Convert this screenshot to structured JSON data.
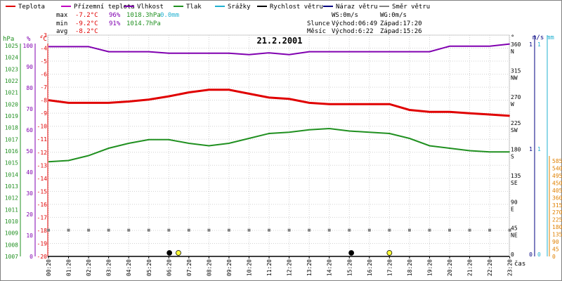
{
  "chart_data": {
    "type": "line",
    "title": "21.2.2001",
    "legend": [
      {
        "label": "Teplota",
        "color": "#e00000"
      },
      {
        "label": "Přízemní teplota",
        "color": "#c000c0"
      },
      {
        "label": "Vlhkost",
        "color": "#8000b0"
      },
      {
        "label": "Tlak",
        "color": "#209020"
      },
      {
        "label": "Srážky",
        "color": "#20b0d0"
      },
      {
        "label": "Rychlost větru",
        "color": "#000000"
      },
      {
        "label": "Náraz větru",
        "color": "#000080"
      },
      {
        "label": "Směr větru",
        "color": "#808080"
      }
    ],
    "stats": {
      "max": {
        "label": "max",
        "temp": "-7.2°C",
        "hum": "96%",
        "press": "1018.3hPa",
        "rain": "0.0mm"
      },
      "min": {
        "label": "min",
        "temp": "-9.2°C",
        "hum": "91%",
        "press": "1014.7hPa"
      },
      "avg": {
        "label": "avg",
        "temp": "-8.2°C"
      }
    },
    "info": {
      "ws": "WS:0m/s",
      "wg": "WG:0m/s",
      "sun_label": "Slunce",
      "sun_rise": "Východ:06:49",
      "sun_set": "Západ:17:20",
      "moon_label": "Měsíc",
      "moon_rise": "Východ:6:22",
      "moon_set": "Západ:15:26"
    },
    "axis_titles": {
      "hpa": "hPa",
      "pct": "%",
      "celsius": "°C",
      "deg": "°",
      "ms": "m/s",
      "mm": "mm",
      "x": "čas"
    },
    "x_ticks": [
      "00:20",
      "01:20",
      "02:20",
      "03:20",
      "04:20",
      "05:20",
      "06:20",
      "07:20",
      "08:20",
      "09:20",
      "10:20",
      "11:20",
      "12:20",
      "13:20",
      "14:20",
      "15:20",
      "16:20",
      "17:20",
      "18:20",
      "19:20",
      "20:20",
      "21:20",
      "22:20",
      "23:20"
    ],
    "hpa_ticks": [
      "1025",
      "1024",
      "1023",
      "1022",
      "1021",
      "1020",
      "1019",
      "1018",
      "1017",
      "1016",
      "1015",
      "1014",
      "1013",
      "1012",
      "1011",
      "1010",
      "1009",
      "1008",
      "1007"
    ],
    "pct_ticks": [
      "100",
      "90",
      "80",
      "70",
      "60",
      "50",
      "40",
      "30",
      "20",
      "10",
      "0"
    ],
    "celsius_ticks": [
      "-3",
      "-4",
      "-5",
      "-6",
      "-7",
      "-8",
      "-9",
      "-10",
      "-11",
      "-12",
      "-13",
      "-14",
      "-15",
      "-16",
      "-17",
      "-18",
      "-19",
      "-20"
    ],
    "dir_ticks": [
      {
        "deg": "360",
        "dir": "N"
      },
      {
        "deg": "315",
        "dir": "NW"
      },
      {
        "deg": "270",
        "dir": "W"
      },
      {
        "deg": "225",
        "dir": "SW"
      },
      {
        "deg": "180",
        "dir": "S"
      },
      {
        "deg": "135",
        "dir": "SE"
      },
      {
        "deg": "90",
        "dir": "E"
      },
      {
        "deg": "45",
        "dir": "NE"
      },
      {
        "deg": "0",
        "dir": ""
      }
    ],
    "ms_ticks": [
      "1",
      "1",
      "0"
    ],
    "mm_ticks": [
      "1",
      "1",
      "0"
    ],
    "orange_ticks": [
      "585",
      "540",
      "495",
      "450",
      "405",
      "360",
      "315",
      "270",
      "225",
      "180",
      "135",
      "90",
      "45",
      "0"
    ],
    "ylim_celsius": [
      -20,
      -3
    ],
    "ylim_hpa": [
      1007,
      1025
    ],
    "ylim_pct": [
      0,
      100
    ],
    "series": [
      {
        "name": "Teplota",
        "color": "#e00000",
        "axis": "celsius",
        "x": [
          0,
          1,
          2,
          3,
          4,
          5,
          6,
          7,
          8,
          9,
          10,
          11,
          12,
          13,
          14,
          15,
          16,
          17,
          18,
          19,
          20,
          21,
          22,
          23
        ],
        "y": [
          -8.0,
          -8.2,
          -8.2,
          -8.2,
          -8.1,
          -7.95,
          -7.7,
          -7.4,
          -7.2,
          -7.2,
          -7.5,
          -7.8,
          -7.9,
          -8.2,
          -8.3,
          -8.3,
          -8.3,
          -8.3,
          -8.75,
          -8.9,
          -8.9,
          -9.0,
          -9.1,
          -9.2
        ]
      },
      {
        "name": "Vlhkost",
        "color": "#8000b0",
        "axis": "pct",
        "x": [
          0,
          1,
          2,
          3,
          4,
          5,
          6,
          7,
          8,
          9,
          10,
          11,
          12,
          13,
          14,
          15,
          16,
          17,
          18,
          19,
          20,
          21,
          22,
          23
        ],
        "y": [
          94.8,
          94.8,
          94.8,
          92.5,
          92.5,
          92.5,
          91.8,
          91.8,
          91.8,
          91.8,
          91.2,
          92.0,
          91.2,
          92.5,
          92.5,
          92.5,
          92.5,
          92.5,
          92.5,
          92.5,
          95.0,
          95.0,
          95.0,
          96.0
        ]
      },
      {
        "name": "Tlak",
        "color": "#209020",
        "axis": "hpa",
        "x": [
          0,
          1,
          2,
          3,
          4,
          5,
          6,
          7,
          8,
          9,
          10,
          11,
          12,
          13,
          14,
          15,
          16,
          17,
          18,
          19,
          20,
          21,
          22,
          23
        ],
        "y": [
          1014.7,
          1014.8,
          1015.2,
          1015.8,
          1016.2,
          1016.5,
          1016.5,
          1016.2,
          1016.0,
          1016.2,
          1016.6,
          1017.0,
          1017.1,
          1017.3,
          1017.4,
          1017.2,
          1017.1,
          1017.0,
          1016.6,
          1016.0,
          1015.8,
          1015.6,
          1015.5,
          1015.5
        ]
      }
    ],
    "wind_dir_points": [
      0,
      1,
      2,
      3,
      4,
      5,
      6,
      7,
      8,
      9,
      10,
      11,
      12,
      13,
      14,
      15,
      16,
      17,
      18,
      19,
      20,
      21,
      22,
      23
    ],
    "wind_dir_value": 45,
    "markers": [
      {
        "name": "moonrise",
        "x": 6.03,
        "fill": "#000000"
      },
      {
        "name": "sunrise",
        "x": 6.48,
        "fill": "#ffff33"
      },
      {
        "name": "moonset",
        "x": 15.1,
        "fill": "#000000"
      },
      {
        "name": "sunset",
        "x": 17.0,
        "fill": "#ffff33"
      }
    ],
    "grid": true
  }
}
